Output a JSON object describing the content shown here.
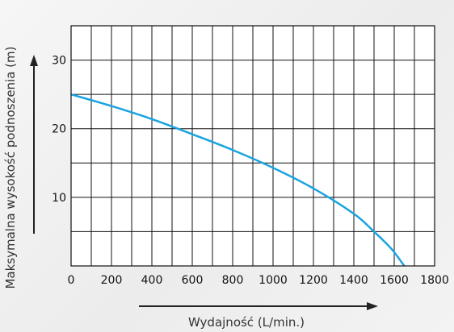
{
  "chart_data": {
    "type": "line",
    "xlabel": "Wydajność (L/min.)",
    "ylabel": "Maksymalna wysokość podnoszenia (m)",
    "xlim": [
      0,
      1800
    ],
    "ylim": [
      0,
      35
    ],
    "x_ticks": [
      0,
      200,
      400,
      600,
      800,
      1000,
      1200,
      1400,
      1600,
      1800
    ],
    "y_ticks": [
      10,
      20,
      30
    ],
    "grid": true,
    "series": [
      {
        "color": "#1aa3e0",
        "points": [
          [
            0,
            25
          ],
          [
            200,
            23.3
          ],
          [
            400,
            21.4
          ],
          [
            600,
            19.2
          ],
          [
            800,
            16.9
          ],
          [
            1000,
            14.3
          ],
          [
            1200,
            11.3
          ],
          [
            1400,
            7.6
          ],
          [
            1500,
            5.0
          ],
          [
            1560,
            3.3
          ],
          [
            1600,
            2.0
          ],
          [
            1650,
            0
          ]
        ]
      }
    ]
  }
}
